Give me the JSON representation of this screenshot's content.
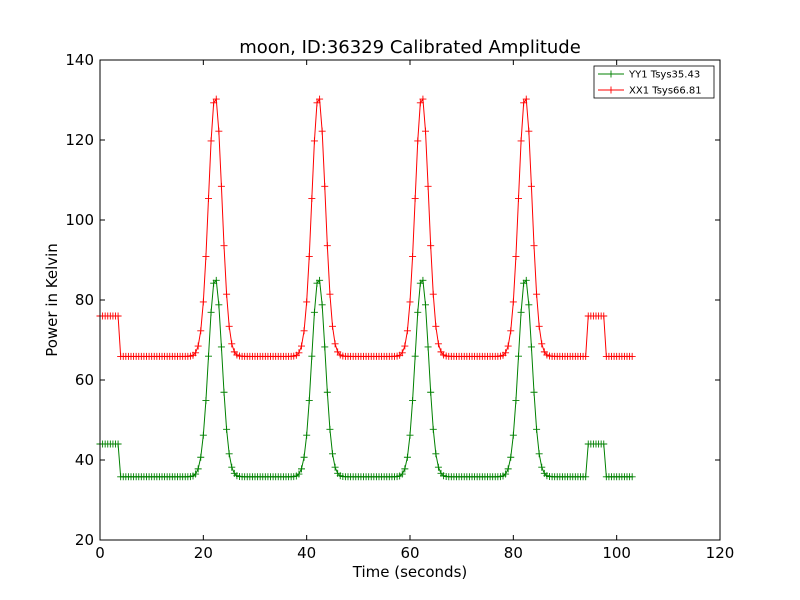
{
  "chart_data": {
    "type": "line",
    "title": "moon, ID:36329 Calibrated Amplitude",
    "xlabel": "Time (seconds)",
    "ylabel": "Power in Kelvin",
    "xlim": [
      0,
      120
    ],
    "ylim": [
      20,
      140
    ],
    "xticks": [
      "0",
      "20",
      "40",
      "60",
      "80",
      "100",
      "120"
    ],
    "yticks": [
      "20",
      "40",
      "60",
      "80",
      "100",
      "120",
      "140"
    ],
    "grid": false,
    "legend_position": "top-right",
    "x_start": 0,
    "x_step": 0.5,
    "marker": "+",
    "series": [
      {
        "name": "YY1 Tsys35.43",
        "color": "#008000",
        "off_level": 44,
        "on_level": 35.8,
        "peak_level": 85.5,
        "cal_on_intervals": [
          [
            0,
            4
          ],
          [
            94.5,
            98
          ]
        ],
        "peak_centers": [
          22.3,
          42.3,
          62.3,
          82.3
        ],
        "peak_width": 1.3
      },
      {
        "name": "XX1 Tsys66.81",
        "color": "#ff0000",
        "off_level": 76,
        "on_level": 65.9,
        "peak_level": 131,
        "cal_on_intervals": [
          [
            0,
            4
          ],
          [
            94.5,
            98
          ]
        ],
        "peak_centers": [
          22.3,
          42.3,
          62.3,
          82.3
        ],
        "peak_width": 1.3
      }
    ],
    "x_end": 103
  }
}
